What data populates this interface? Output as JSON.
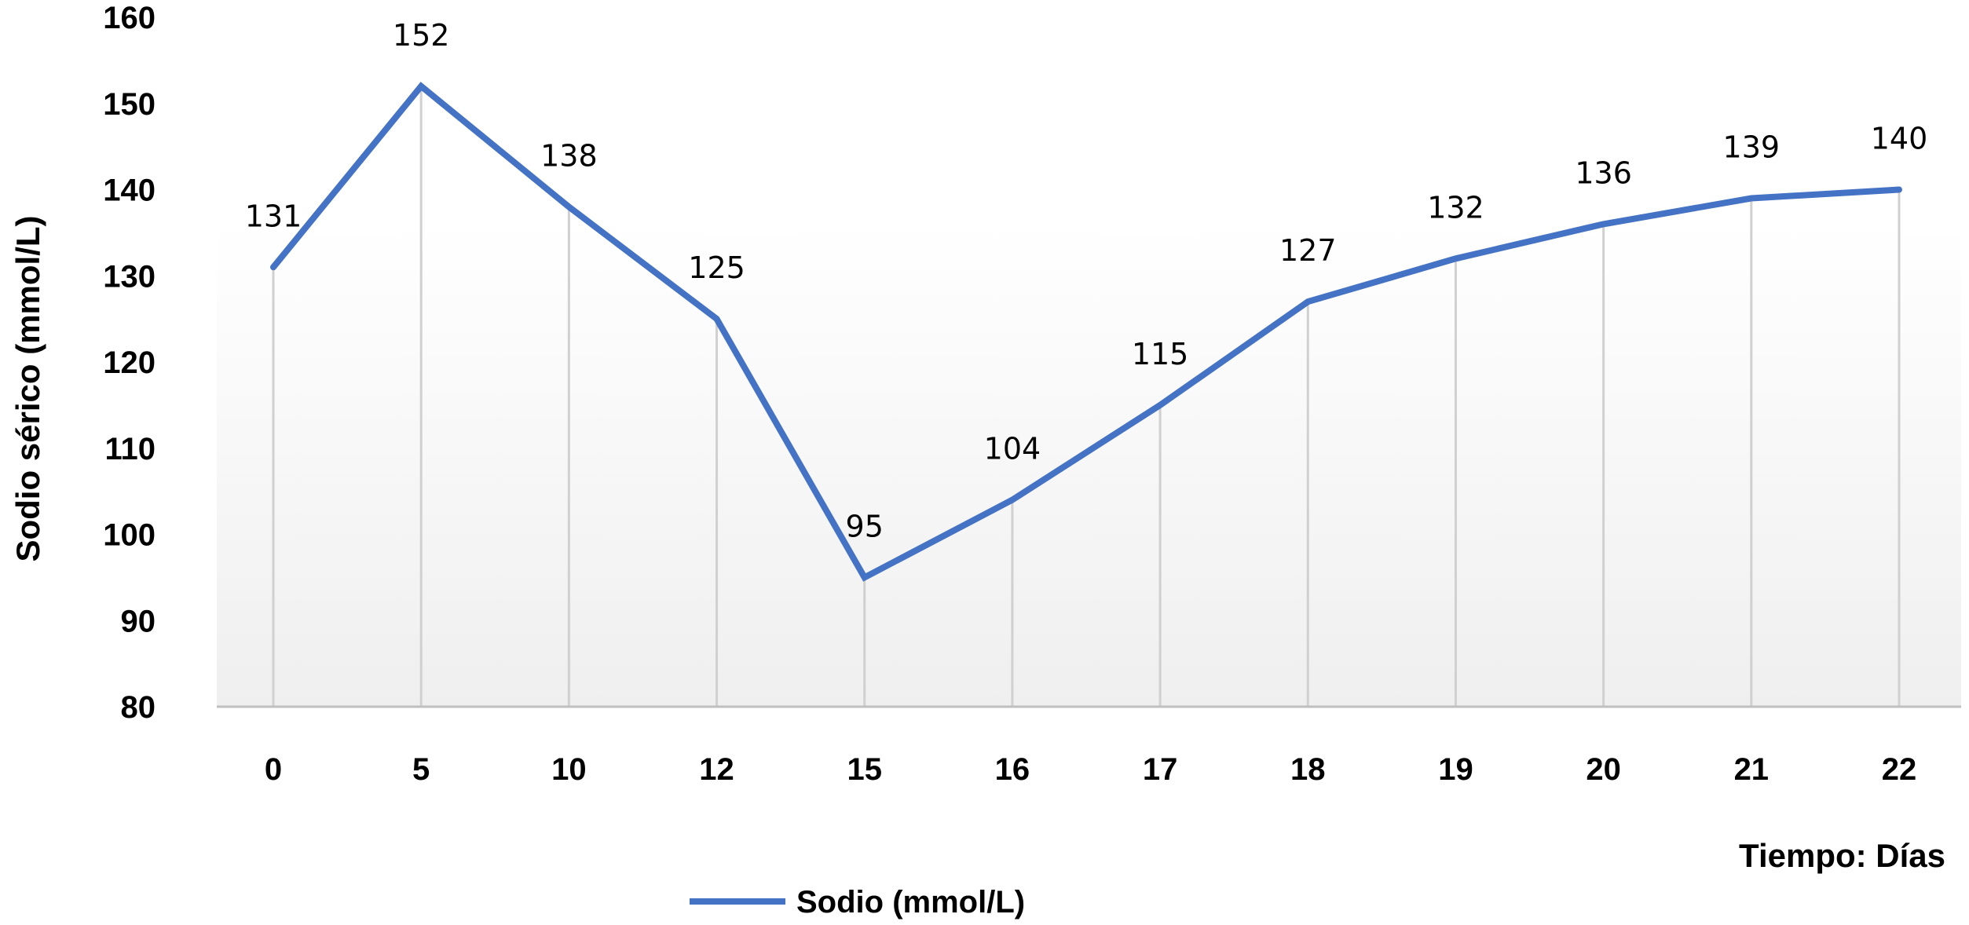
{
  "chart_data": {
    "type": "line",
    "title": "",
    "xlabel": "Tiempo: Días",
    "ylabel": "Sodio sérico (mmol/L)",
    "categories": [
      "0",
      "5",
      "10",
      "12",
      "15",
      "16",
      "17",
      "18",
      "19",
      "20",
      "21",
      "22"
    ],
    "series": [
      {
        "name": "Sodio (mmol/L)",
        "values": [
          131,
          152,
          138,
          125,
          95,
          104,
          115,
          127,
          132,
          136,
          139,
          140
        ],
        "color": "#4472C4"
      }
    ],
    "ylim": [
      80,
      160
    ],
    "yticks": [
      80,
      90,
      100,
      110,
      120,
      130,
      140,
      150,
      160
    ],
    "data_labels": true,
    "vertical_drop_lines": true,
    "legend_position": "bottom",
    "colors": {
      "line": "#4472C4",
      "drop_line": "#d0d0d0",
      "axis": "#bfbfbf",
      "plot_background_bottom": "#f1f1f1"
    }
  }
}
